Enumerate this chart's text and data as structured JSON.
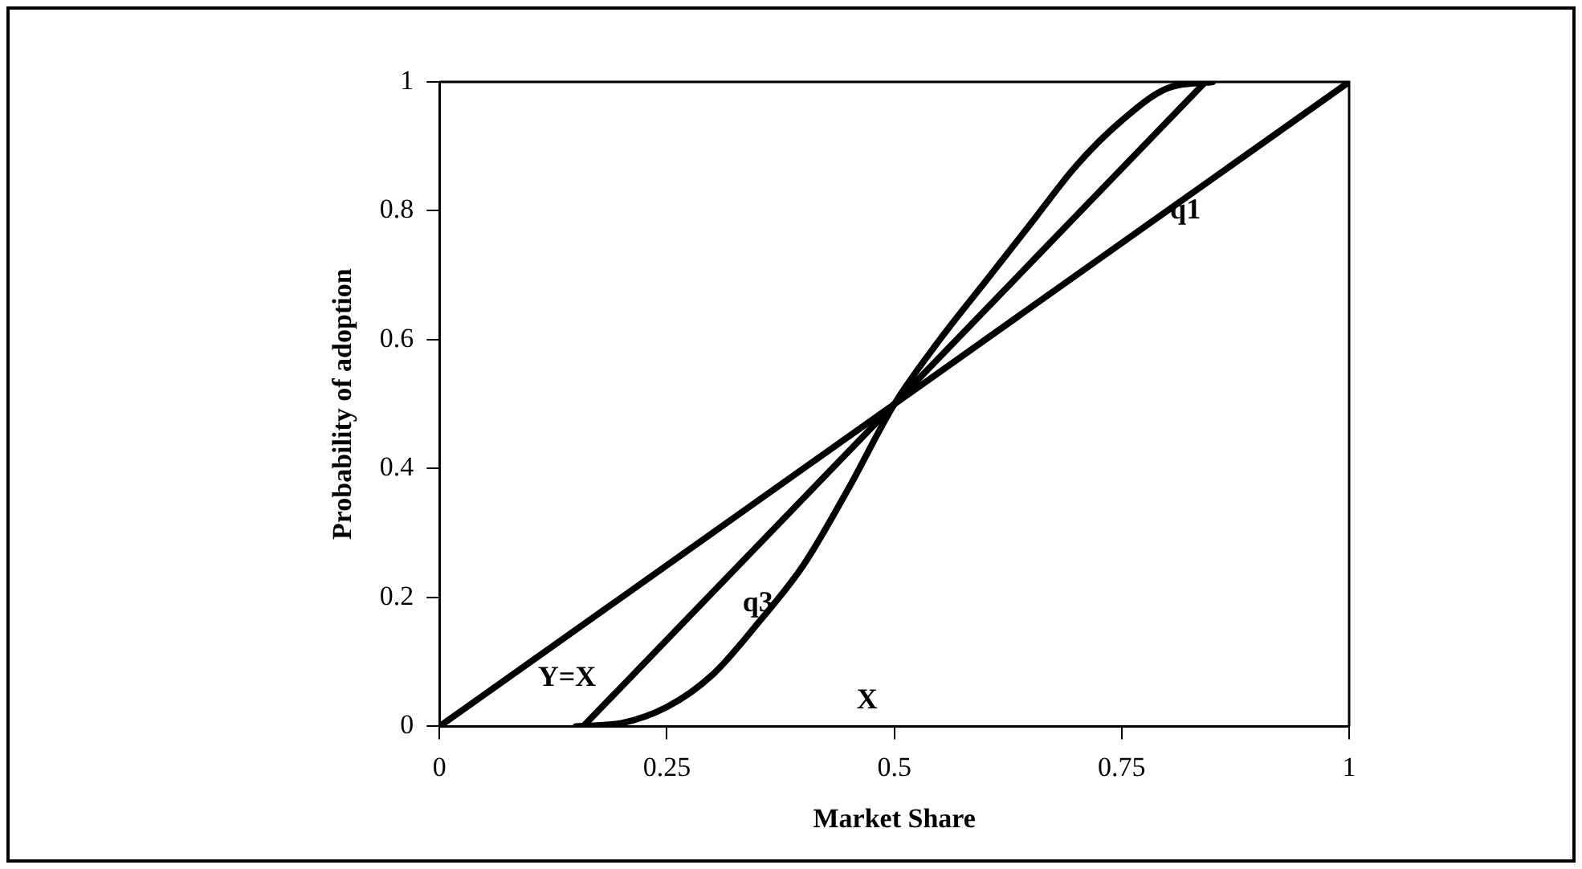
{
  "chart_data": {
    "type": "line",
    "xlabel": "Market Share",
    "ylabel": "Probability of adoption",
    "xlim": [
      0,
      1
    ],
    "xticks": [
      0,
      0.25,
      0.5,
      0.75,
      1
    ],
    "ylim": [
      0,
      1
    ],
    "yticks": [
      0,
      0.2,
      0.4,
      0.6,
      0.8,
      1
    ],
    "grid": false,
    "legend": false,
    "marker": "none",
    "line_style": "solid",
    "series": [
      {
        "color": "#000000",
        "x": [
          0,
          1
        ],
        "values": [
          0,
          1
        ]
      },
      {
        "color": "#000000",
        "x": [
          0.158,
          0.842
        ],
        "values": [
          0,
          1
        ]
      },
      {
        "color": "#000000",
        "x": [
          0.15,
          0.2,
          0.25,
          0.3,
          0.35,
          0.4,
          0.45,
          0.5,
          0.55,
          0.6,
          0.65,
          0.7,
          0.75,
          0.8,
          0.85
        ],
        "values": [
          0,
          0.005,
          0.03,
          0.08,
          0.16,
          0.25,
          0.37,
          0.5,
          0.6,
          0.69,
          0.78,
          0.87,
          0.94,
          0.99,
          1
        ]
      }
    ],
    "annotations": [
      "Y=X",
      {
        "text": "q1",
        "x": 0.82,
        "y": 0.8
      },
      "q3",
      "X"
    ]
  }
}
